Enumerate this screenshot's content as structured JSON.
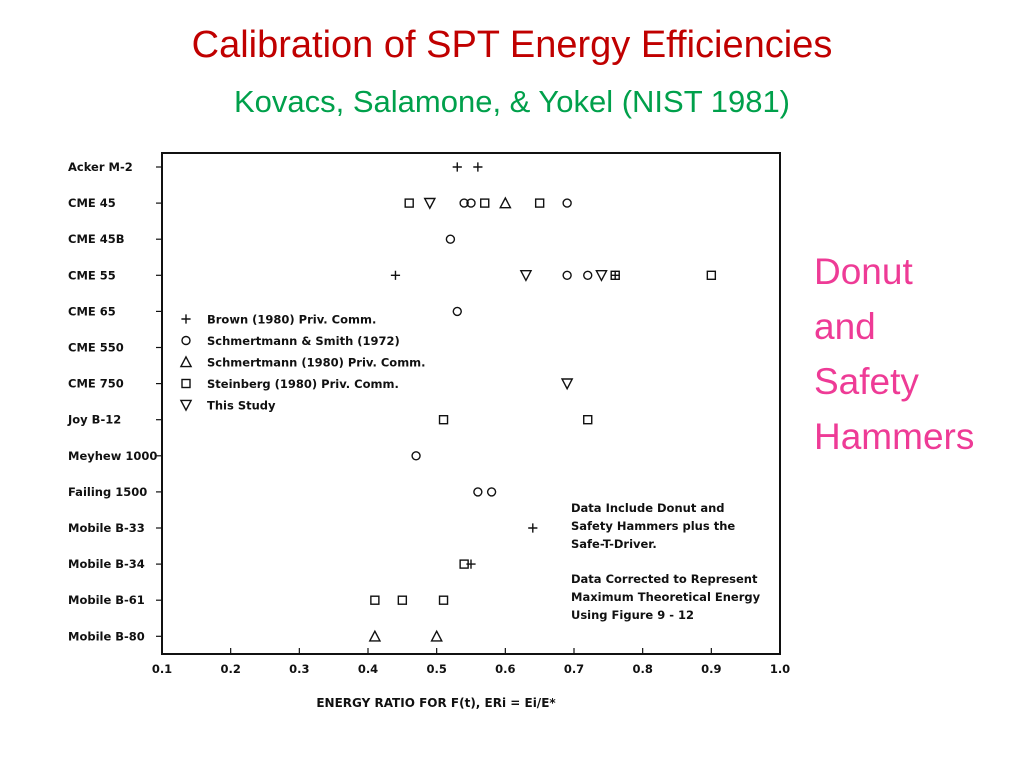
{
  "slide": {
    "title": "Calibration of SPT Energy Efficiencies",
    "subtitle": "Kovacs, Salamone, & Yokel (NIST 1981)",
    "side_note": [
      "Donut",
      "and",
      "Safety",
      "Hammers"
    ]
  },
  "chart_data": {
    "type": "scatter",
    "xlabel": "ENERGY RATIO FOR F(t), ERi = Ei/E*",
    "xlim": [
      0.1,
      1.0
    ],
    "x_ticks": [
      "0.1",
      "0.2",
      "0.3",
      "0.4",
      "0.5",
      "0.6",
      "0.7",
      "0.8",
      "0.9",
      "1.0"
    ],
    "categories": [
      "Acker M-2",
      "CME 45",
      "CME 45B",
      "CME 55",
      "CME 65",
      "CME 550",
      "CME 750",
      "Joy B-12",
      "Meyhew 1000",
      "Failing 1500",
      "Mobile B-33",
      "Mobile B-34",
      "Mobile B-61",
      "Mobile B-80"
    ],
    "series": [
      {
        "name": "Brown (1980) Priv. Comm.",
        "marker": "plus",
        "points": [
          [
            "Acker M-2",
            0.53
          ],
          [
            "Acker M-2",
            0.56
          ],
          [
            "CME 55",
            0.44
          ],
          [
            "CME 55",
            0.76
          ],
          [
            "Mobile B-33",
            0.64
          ],
          [
            "Mobile B-34",
            0.55
          ]
        ]
      },
      {
        "name": "Schmertmann & Smith (1972)",
        "marker": "circle",
        "points": [
          [
            "CME 45",
            0.54
          ],
          [
            "CME 45",
            0.55
          ],
          [
            "CME 45",
            0.69
          ],
          [
            "CME 45B",
            0.52
          ],
          [
            "CME 55",
            0.69
          ],
          [
            "CME 55",
            0.72
          ],
          [
            "CME 65",
            0.53
          ],
          [
            "Meyhew 1000",
            0.47
          ],
          [
            "Failing 1500",
            0.56
          ],
          [
            "Failing 1500",
            0.58
          ]
        ]
      },
      {
        "name": "Schmertmann (1980) Priv. Comm.",
        "marker": "triangle",
        "points": [
          [
            "CME 45",
            0.6
          ],
          [
            "Mobile B-80",
            0.41
          ],
          [
            "Mobile B-80",
            0.5
          ]
        ]
      },
      {
        "name": "Steinberg (1980) Priv. Comm.",
        "marker": "square",
        "points": [
          [
            "CME 45",
            0.46
          ],
          [
            "CME 45",
            0.57
          ],
          [
            "CME 45",
            0.65
          ],
          [
            "CME 55",
            0.76
          ],
          [
            "CME 55",
            0.9
          ],
          [
            "Joy B-12",
            0.51
          ],
          [
            "Joy B-12",
            0.72
          ],
          [
            "Mobile B-34",
            0.54
          ],
          [
            "Mobile B-61",
            0.41
          ],
          [
            "Mobile B-61",
            0.45
          ],
          [
            "Mobile B-61",
            0.51
          ]
        ]
      },
      {
        "name": "This Study",
        "marker": "triangle-down",
        "points": [
          [
            "CME 45",
            0.49
          ],
          [
            "CME 55",
            0.63
          ],
          [
            "CME 55",
            0.74
          ],
          [
            "CME 750",
            0.69
          ]
        ]
      }
    ],
    "annotations": [
      "Data Include Donut and",
      "Safety Hammers plus the",
      "Safe-T-Driver.",
      "Data Corrected to Represent",
      "Maximum Theoretical Energy",
      "Using Figure 9 - 12"
    ],
    "legend_position": "left"
  }
}
